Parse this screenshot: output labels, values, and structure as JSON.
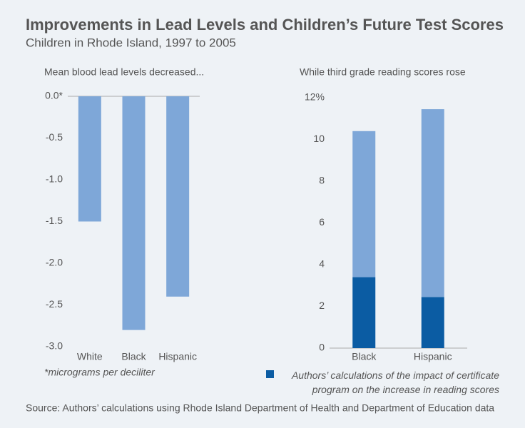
{
  "title": "Improvements in Lead Levels and Children’s Future Test Scores",
  "subtitle": "Children in Rhode Island, 1997 to 2005",
  "source": "Source: Authors’ calculations using Rhode Island Department of Health and Department of Education data",
  "chart_data": [
    {
      "type": "bar",
      "title": "Mean blood lead levels decreased...",
      "categories": [
        "White",
        "Black",
        "Hispanic"
      ],
      "values": [
        -1.5,
        -2.8,
        -2.4
      ],
      "color": "#7ea7d8",
      "ylim": [
        -3.0,
        0
      ],
      "yticks": [
        {
          "value": 0,
          "label": "0.0*"
        },
        -0.5,
        {
          "value": -1,
          "label": "-1.0"
        },
        -1.5,
        {
          "value": -2,
          "label": "-2.0"
        },
        -2.5,
        {
          "value": -3,
          "label": "-3.0"
        }
      ],
      "note": "*micrograms per deciliter",
      "grid": false
    },
    {
      "type": "stacked_bar",
      "title": "While third grade reading scores rose",
      "categories": [
        "Black",
        "Hispanic"
      ],
      "series": [
        {
          "name": "Authors’ calculations of the impact of certificate program on the increase in reading scores",
          "color": "#0b5ca3",
          "values": [
            3.4,
            2.45
          ]
        },
        {
          "color": "#7ea7d8",
          "values": [
            7.0,
            9.0
          ]
        }
      ],
      "ylim": [
        0,
        12
      ],
      "yticks": [
        0,
        2,
        4,
        6,
        8,
        10,
        {
          "value": 12,
          "label": "12%"
        }
      ],
      "grid": false
    }
  ]
}
